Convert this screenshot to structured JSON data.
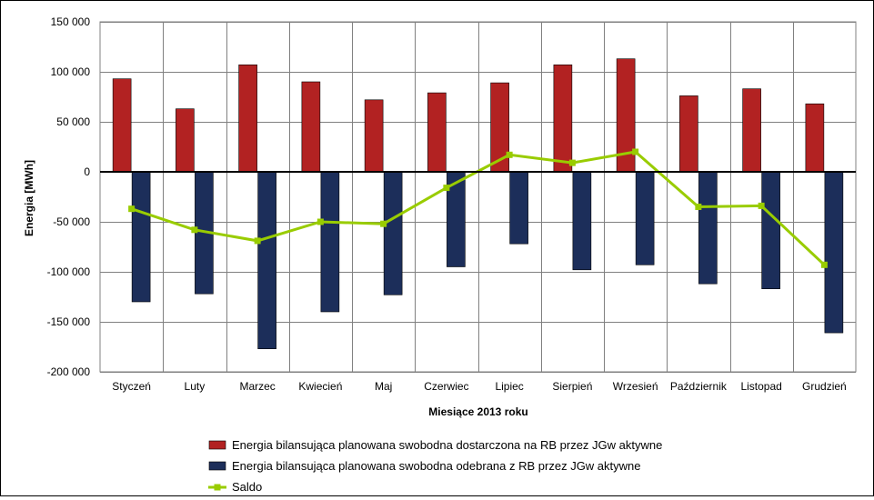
{
  "chart_data": {
    "type": "bar",
    "xlabel": "Miesiące 2013  roku",
    "ylabel": "Energia [MWh]",
    "ylim": [
      -200000,
      150000
    ],
    "yticks": [
      150000,
      100000,
      50000,
      0,
      -50000,
      -100000,
      -150000,
      -200000
    ],
    "ytick_labels": [
      "150 000",
      "100 000",
      "50 000",
      "0",
      "-50 000",
      "-100 000",
      "-150 000",
      "-200 000"
    ],
    "grid": true,
    "legend_position": "bottom",
    "categories": [
      "Styczeń",
      "Luty",
      "Marzec",
      "Kwiecień",
      "Maj",
      "Czerwiec",
      "Lipiec",
      "Sierpień",
      "Wrzesień",
      "Październik",
      "Listopad",
      "Grudzień"
    ],
    "series": [
      {
        "name": "Energia bilansująca planowana swobodna dostarczona na RB przez JGw aktywne",
        "kind": "bar",
        "color": "#b22222",
        "values": [
          93000,
          63000,
          107000,
          90000,
          72000,
          79000,
          89000,
          107000,
          113000,
          76000,
          83000,
          68000
        ]
      },
      {
        "name": "Energia bilansująca planowana swobodna odebrana z RB przez JGw aktywne",
        "kind": "bar",
        "color": "#1c2e5a",
        "values": [
          -130000,
          -122000,
          -177000,
          -140000,
          -123000,
          -95000,
          -72000,
          -98000,
          -93000,
          -112000,
          -117000,
          -161000
        ]
      },
      {
        "name": "Saldo",
        "kind": "line",
        "color": "#99cc00",
        "values": [
          -37000,
          -58000,
          -69000,
          -50000,
          -52000,
          -16000,
          17000,
          9000,
          20000,
          -35000,
          -34000,
          -93000
        ]
      }
    ]
  }
}
